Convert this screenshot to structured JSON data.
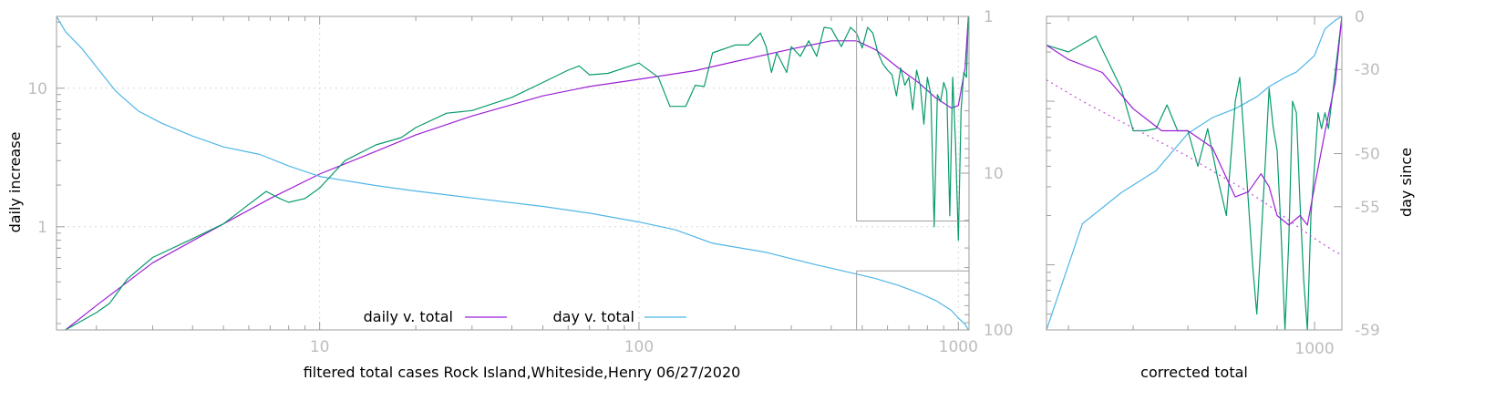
{
  "colors": {
    "daily": "#9b1fd6",
    "day": "#4fb6e6",
    "raw": "#079a6c",
    "trend": "#c04fd6",
    "frame": "#9e9e9e",
    "tick_text": "#bdbdbd"
  },
  "chart_data": [
    {
      "type": "line",
      "xlabel": "filtered total cases Rock Island,Whiteside,Henry 06/27/2020",
      "ylabel": "daily increase",
      "y2label": "",
      "x_scale": "log",
      "y_scale": "log",
      "y2_scale": "log",
      "xlim": [
        1.5,
        1080
      ],
      "ylim": [
        0.18,
        33
      ],
      "y2lim": [
        1,
        100
      ],
      "y2_reversed": true,
      "grid": true,
      "legend_position": "bottom-center",
      "x_ticks": [
        {
          "value": 10,
          "label": "10"
        },
        {
          "value": 100,
          "label": "100"
        },
        {
          "value": 1000,
          "label": "1000"
        }
      ],
      "y_ticks": [
        {
          "value": 1,
          "label": "1"
        },
        {
          "value": 10,
          "label": "10"
        }
      ],
      "y2_ticks": [
        {
          "value": 1,
          "label": "1"
        },
        {
          "value": 10,
          "label": "10"
        },
        {
          "value": 100,
          "label": "100"
        }
      ],
      "series": [
        {
          "name": "daily v. total",
          "axis": "y",
          "x": [
            1.6,
            2,
            3,
            5,
            7,
            10,
            15,
            20,
            30,
            50,
            70,
            100,
            150,
            200,
            300,
            400,
            480,
            550,
            650,
            750,
            850,
            950,
            1000,
            1050,
            1075
          ],
          "y": [
            0.18,
            0.27,
            0.55,
            1.05,
            1.6,
            2.4,
            3.5,
            4.6,
            6.3,
            8.8,
            10.3,
            11.6,
            13.4,
            15.6,
            19.2,
            22,
            22,
            19,
            14,
            11,
            8.5,
            7.2,
            7.5,
            14,
            33
          ]
        },
        {
          "name": "day v. total",
          "axis": "y2",
          "x": [
            1.5,
            1.6,
            1.8,
            2,
            2.3,
            2.7,
            3.2,
            4,
            5,
            6.5,
            8,
            10,
            15,
            20,
            30,
            50,
            70,
            100,
            130,
            170,
            250,
            350,
            480,
            550,
            650,
            750,
            850,
            950,
            1000,
            1050,
            1075
          ],
          "y": [
            1,
            1.25,
            1.6,
            2.1,
            3,
            4,
            4.8,
            5.8,
            6.8,
            7.6,
            9,
            10.5,
            12,
            13,
            14.4,
            16.3,
            18,
            20.5,
            23,
            28,
            32,
            38,
            44,
            47,
            52,
            58,
            65,
            75,
            84,
            92,
            100
          ]
        },
        {
          "name": "",
          "axis": "y",
          "x": [
            1.6,
            2,
            2.2,
            2.5,
            3,
            4,
            5,
            6,
            6.8,
            7.5,
            8,
            9,
            10,
            12,
            15,
            18,
            20,
            25,
            30,
            40,
            50,
            60,
            65,
            70,
            80,
            90,
            100,
            115,
            125,
            140,
            150,
            160,
            170,
            200,
            220,
            240,
            250,
            260,
            270,
            290,
            300,
            320,
            340,
            360,
            380,
            400,
            430,
            460,
            480,
            500,
            520,
            540,
            560,
            580,
            600,
            620,
            640,
            660,
            680,
            700,
            720,
            740,
            760,
            780,
            800,
            820,
            840,
            860,
            880,
            900,
            920,
            940,
            960,
            980,
            1000,
            1020,
            1040,
            1060,
            1075
          ],
          "y": [
            0.18,
            0.24,
            0.28,
            0.42,
            0.6,
            0.82,
            1.05,
            1.45,
            1.8,
            1.6,
            1.5,
            1.6,
            1.9,
            3,
            3.9,
            4.4,
            5.2,
            6.6,
            6.9,
            8.6,
            11,
            13.5,
            14.5,
            12.5,
            12.8,
            14,
            15.2,
            12,
            7.4,
            7.4,
            10.5,
            10.3,
            18,
            20.5,
            20.5,
            25,
            20,
            13,
            18,
            13,
            20,
            17,
            22,
            17,
            27.5,
            27,
            20,
            27.5,
            25,
            19.5,
            27.5,
            25,
            18,
            15,
            13.5,
            12.5,
            8.8,
            14,
            10.5,
            12,
            7,
            13.5,
            10.5,
            5.5,
            12,
            9,
            1,
            9,
            8,
            11,
            9.5,
            1.2,
            12,
            4,
            0.8,
            7,
            13,
            12,
            33
          ]
        }
      ],
      "legend": [
        {
          "label": "daily v. total",
          "color": "#9b1fd6"
        },
        {
          "label": "day v. total",
          "color": "#4fb6e6"
        }
      ]
    },
    {
      "type": "line",
      "xlabel": "corrected total",
      "ylabel": "",
      "y2label": "day since",
      "x_scale": "log",
      "y_scale": "log",
      "xlim": [
        470,
        1080
      ],
      "ylim": [
        0.4,
        33
      ],
      "y2lim": [
        0,
        -59
      ],
      "grid": false,
      "x_ticks": [
        {
          "value": 1000,
          "label": "1000"
        }
      ],
      "y2_ticks": [
        {
          "value": 0,
          "label": "0"
        },
        {
          "value": -30,
          "label": "-30"
        },
        {
          "value": -50,
          "label": "-50"
        },
        {
          "value": -55,
          "label": "-55"
        },
        {
          "value": -59,
          "label": "-59"
        }
      ],
      "series": [
        {
          "name": "",
          "axis": "y",
          "x": [
            470,
            500,
            550,
            600,
            650,
            700,
            750,
            800,
            830,
            860,
            880,
            900,
            930,
            960,
            980,
            1000,
            1030,
            1060,
            1080
          ],
          "y": [
            22,
            18,
            15,
            9,
            6.6,
            6.6,
            5.2,
            2.6,
            2.8,
            3.6,
            3,
            2,
            1.75,
            2,
            1.75,
            3,
            6.5,
            13,
            33
          ]
        },
        {
          "name": "",
          "axis": "y",
          "x": [
            470,
            520,
            580,
            640,
            700,
            760,
            820,
            880,
            940,
            1000,
            1060,
            1080
          ],
          "y": [
            13.5,
            10,
            7.5,
            5.8,
            4.6,
            3.6,
            2.9,
            2.3,
            1.8,
            1.45,
            1.2,
            1.15
          ]
        },
        {
          "name": "",
          "axis": "y2",
          "x": [
            470,
            520,
            580,
            640,
            700,
            750,
            800,
            850,
            880,
            920,
            950,
            980,
            1000,
            1030,
            1060,
            1080
          ],
          "y": [
            -59,
            -56,
            -54,
            -52,
            -47,
            -44,
            -42,
            -39,
            -36,
            -33,
            -31,
            -27,
            -24,
            -9,
            -3,
            0
          ]
        },
        {
          "name": "",
          "axis": "y",
          "x": [
            470,
            500,
            540,
            580,
            600,
            620,
            640,
            660,
            680,
            700,
            720,
            740,
            760,
            780,
            800,
            810,
            820,
            840,
            850,
            860,
            870,
            880,
            890,
            900,
            910,
            920,
            930,
            940,
            950,
            960,
            970,
            980,
            990,
            1000,
            1010,
            1020,
            1030,
            1040,
            1060,
            1080
          ],
          "y": [
            22,
            20,
            25,
            12,
            6.6,
            6.6,
            6.8,
            9.5,
            6.6,
            6.6,
            4,
            6.8,
            3.5,
            2,
            10,
            14,
            6,
            1,
            0.5,
            1.4,
            4,
            12,
            7,
            5,
            1.6,
            0.4,
            1.4,
            10,
            8.5,
            2.4,
            0.8,
            0.4,
            2,
            4,
            8.5,
            6.8,
            8.5,
            6.8,
            15,
            33
          ]
        }
      ]
    }
  ]
}
